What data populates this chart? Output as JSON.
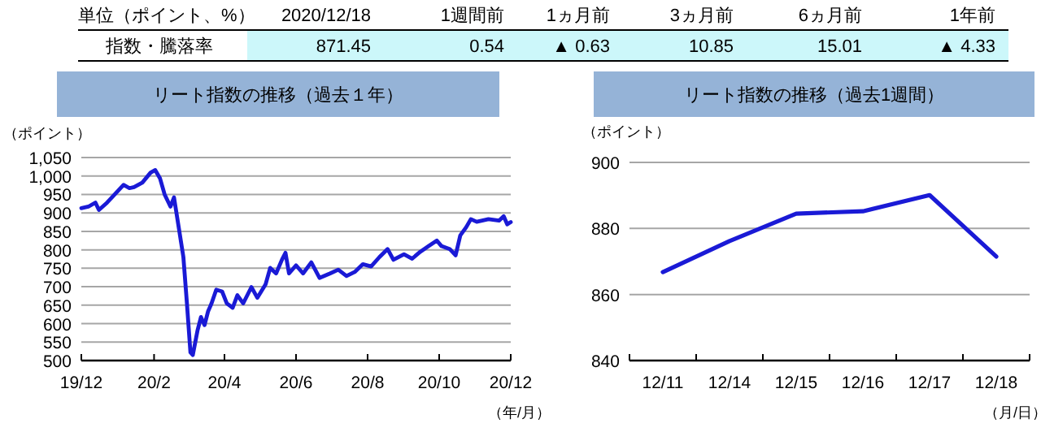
{
  "chart_data": [
    {
      "type": "other",
      "annotations": [
        "単位（ポイント、%）",
        "2020/12/18",
        "1週間前",
        "1ヵ月前",
        "3ヵ月前",
        "6ヵ月前",
        "1年前",
        "指数・騰落率",
        "871.45",
        "0.54",
        "▲ 0.63",
        "10.85",
        "15.01",
        "▲ 4.33"
      ]
    },
    {
      "type": "line",
      "title": "リート指数の推移（過去１年）",
      "ylabel": "（ポイント）",
      "xlabel": "（年/月）",
      "grid": "y",
      "xlim": [
        "2019-12-18",
        "2020-12-18"
      ],
      "xticks": [
        {
          "value": "2019-12-18",
          "label": "19/12"
        },
        {
          "value": "2020-02-18",
          "label": "20/2"
        },
        {
          "value": "2020-04-18",
          "label": "20/4"
        },
        {
          "value": "2020-06-18",
          "label": "20/6"
        },
        {
          "value": "2020-08-18",
          "label": "20/8"
        },
        {
          "value": "2020-10-18",
          "label": "20/10"
        },
        {
          "value": "2020-12-18",
          "label": "20/12"
        }
      ],
      "ylim": [
        500,
        1050
      ],
      "yticks": [
        500,
        550,
        600,
        650,
        700,
        750,
        800,
        850,
        900,
        950,
        {
          "value": 1000,
          "label": "1,000"
        },
        {
          "value": 1050,
          "label": "1,050"
        }
      ],
      "series": [
        {
          "color": "#1a1ad6",
          "x": [
            "2019-12-18",
            "2019-12-24",
            "2019-12-30",
            "2020-01-02",
            "2020-01-09",
            "2020-01-14",
            "2020-01-23",
            "2020-01-28",
            "2020-02-01",
            "2020-02-08",
            "2020-02-15",
            "2020-02-19",
            "2020-02-23",
            "2020-02-27",
            "2020-03-03",
            "2020-03-06",
            "2020-03-10",
            "2020-03-14",
            "2020-03-17",
            "2020-03-20",
            "2020-03-22",
            "2020-03-26",
            "2020-03-29",
            "2020-04-01",
            "2020-04-04",
            "2020-04-07",
            "2020-04-11",
            "2020-04-16",
            "2020-04-20",
            "2020-04-25",
            "2020-04-29",
            "2020-05-04",
            "2020-05-11",
            "2020-05-16",
            "2020-05-23",
            "2020-05-27",
            "2020-06-01",
            "2020-06-06",
            "2020-06-09",
            "2020-06-12",
            "2020-06-18",
            "2020-06-24",
            "2020-07-01",
            "2020-07-08",
            "2020-07-17",
            "2020-07-24",
            "2020-07-31",
            "2020-08-07",
            "2020-08-14",
            "2020-08-21",
            "2020-08-28",
            "2020-09-04",
            "2020-09-09",
            "2020-09-18",
            "2020-09-25",
            "2020-10-02",
            "2020-10-09",
            "2020-10-16",
            "2020-10-20",
            "2020-10-27",
            "2020-11-01",
            "2020-11-05",
            "2020-11-10",
            "2020-11-14",
            "2020-11-19",
            "2020-11-29",
            "2020-12-08",
            "2020-12-12",
            "2020-12-15",
            "2020-12-18"
          ],
          "values": [
            913,
            917,
            928,
            908,
            928,
            945,
            976,
            967,
            970,
            982,
            1009,
            1016,
            994,
            950,
            917,
            942,
            861,
            780,
            655,
            522,
            515,
            581,
            618,
            596,
            633,
            655,
            692,
            687,
            655,
            643,
            677,
            655,
            699,
            670,
            706,
            751,
            736,
            773,
            792,
            736,
            758,
            736,
            766,
            724,
            736,
            746,
            729,
            740,
            761,
            755,
            780,
            802,
            773,
            788,
            776,
            795,
            810,
            825,
            810,
            802,
            785,
            839,
            861,
            883,
            876,
            883,
            879,
            891,
            869,
            875
          ]
        }
      ]
    },
    {
      "type": "line",
      "title": "リート指数の推移（過去1週間）",
      "ylabel": "（ポイント）",
      "xlabel": "（月/日）",
      "grid": "y",
      "categories": [
        "12/11",
        "12/14",
        "12/15",
        "12/16",
        "12/17",
        "12/18"
      ],
      "ylim": [
        840,
        900
      ],
      "yticks": [
        840,
        860,
        880,
        900
      ],
      "series": [
        {
          "color": "#1a1ad6",
          "values": [
            866.8,
            876.2,
            884.5,
            885.2,
            890.1,
            871.5
          ]
        }
      ]
    }
  ]
}
